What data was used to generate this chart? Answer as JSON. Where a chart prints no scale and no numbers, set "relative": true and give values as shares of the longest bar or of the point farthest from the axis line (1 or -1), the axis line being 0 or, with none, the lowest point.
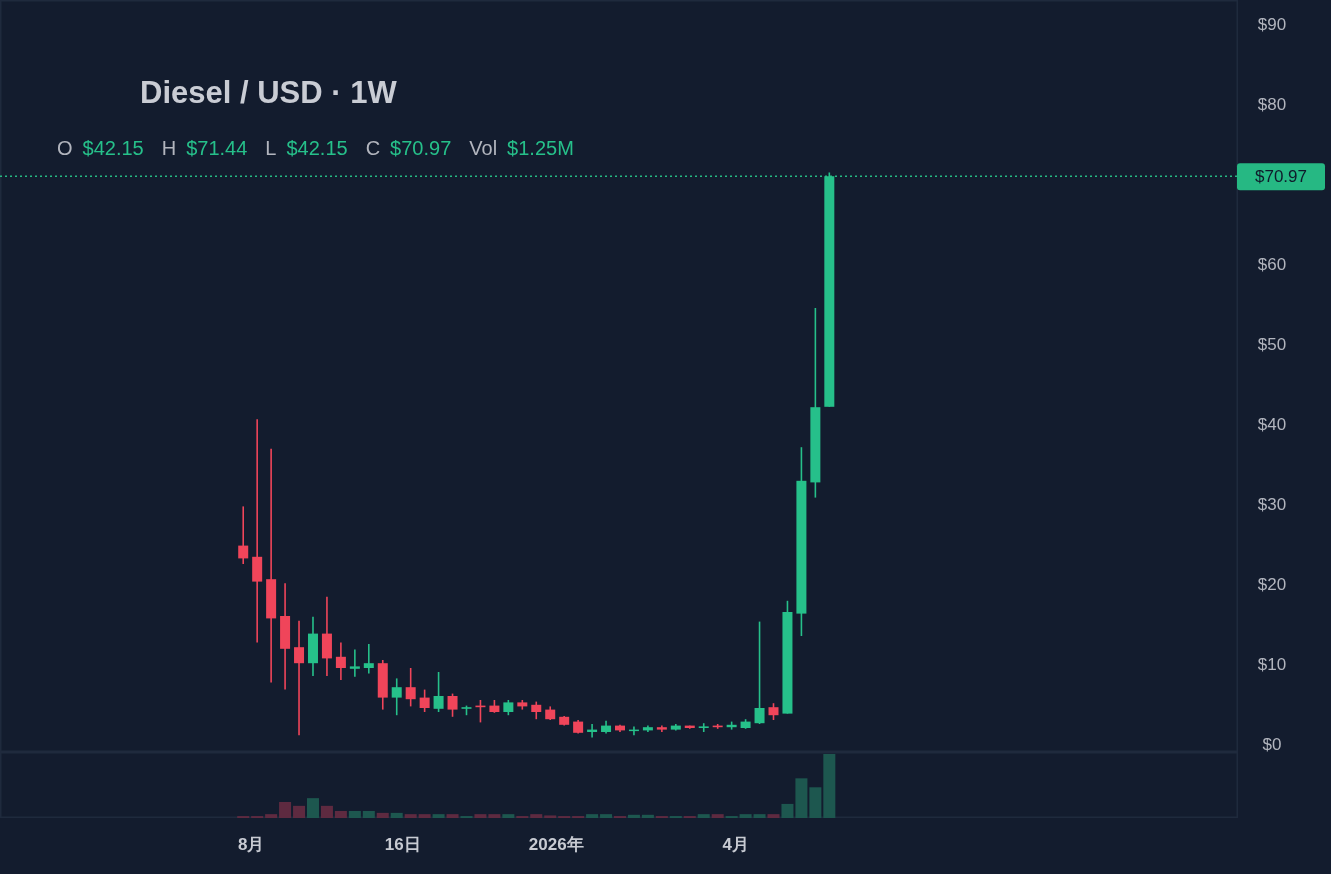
{
  "chart_data": [
    {
      "type": "candlestick",
      "title": "Diesel / USD · 1W",
      "annotations": [
        "O $42.15",
        "H $71.44",
        "L $42.15",
        "C $70.97",
        "Vol $1.25M"
      ],
      "x": [
        "2025-07-28",
        "2025-08-04",
        "2025-08-11",
        "2025-08-18",
        "2025-08-25",
        "2025-09-01",
        "2025-09-08",
        "2025-09-15",
        "2025-09-22",
        "2025-09-29",
        "2025-10-06",
        "2025-10-13",
        "2025-10-20",
        "2025-10-27",
        "2025-11-03",
        "2025-11-10",
        "2025-11-17",
        "2025-11-24",
        "2025-12-01",
        "2025-12-08",
        "2025-12-15",
        "2025-12-22",
        "2025-12-29",
        "2026-01-05",
        "2026-01-12",
        "2026-01-19",
        "2026-01-26",
        "2026-02-02",
        "2026-02-09",
        "2026-02-16",
        "2026-02-23",
        "2026-03-02",
        "2026-03-09",
        "2026-03-16",
        "2026-03-23",
        "2026-03-30",
        "2026-04-06",
        "2026-04-13",
        "2026-04-20",
        "2026-04-27",
        "2026-05-04",
        "2026-05-11",
        "2026-05-18"
      ],
      "ohlc": [
        [
          24.8,
          29.7,
          22.5,
          23.2
        ],
        [
          23.4,
          40.6,
          12.7,
          20.3
        ],
        [
          20.6,
          36.9,
          7.7,
          15.7
        ],
        [
          16.0,
          20.1,
          6.8,
          11.9
        ],
        [
          12.1,
          15.4,
          1.1,
          10.1
        ],
        [
          10.1,
          15.9,
          8.5,
          13.8
        ],
        [
          13.8,
          18.4,
          8.5,
          10.7
        ],
        [
          10.9,
          12.7,
          8.0,
          9.5
        ],
        [
          9.4,
          11.8,
          8.4,
          9.7
        ],
        [
          9.5,
          12.5,
          8.8,
          10.1
        ],
        [
          10.1,
          10.5,
          4.3,
          5.8
        ],
        [
          5.8,
          8.2,
          3.6,
          7.1
        ],
        [
          7.1,
          9.5,
          4.7,
          5.6
        ],
        [
          5.8,
          6.8,
          4.0,
          4.5
        ],
        [
          4.4,
          9.0,
          4.0,
          6.0
        ],
        [
          6.0,
          6.3,
          3.4,
          4.3
        ],
        [
          4.4,
          4.8,
          3.6,
          4.6
        ],
        [
          4.8,
          5.5,
          2.7,
          4.6
        ],
        [
          4.8,
          5.5,
          3.9,
          4.0
        ],
        [
          4.0,
          5.5,
          3.6,
          5.2
        ],
        [
          5.2,
          5.5,
          4.3,
          4.7
        ],
        [
          4.9,
          5.3,
          3.1,
          4.0
        ],
        [
          4.3,
          4.7,
          3.0,
          3.1
        ],
        [
          3.4,
          3.5,
          2.3,
          2.4
        ],
        [
          2.8,
          3.0,
          1.3,
          1.4
        ],
        [
          1.5,
          2.5,
          0.8,
          1.8
        ],
        [
          1.5,
          2.9,
          1.3,
          2.3
        ],
        [
          2.3,
          2.4,
          1.5,
          1.7
        ],
        [
          1.7,
          2.2,
          1.1,
          1.8
        ],
        [
          1.7,
          2.3,
          1.5,
          2.1
        ],
        [
          2.1,
          2.3,
          1.5,
          1.8
        ],
        [
          1.8,
          2.5,
          1.7,
          2.3
        ],
        [
          2.3,
          2.3,
          1.9,
          2.0
        ],
        [
          2.0,
          2.6,
          1.5,
          2.2
        ],
        [
          2.3,
          2.5,
          1.9,
          2.1
        ],
        [
          2.1,
          2.8,
          1.8,
          2.4
        ],
        [
          2.0,
          3.1,
          1.9,
          2.8
        ],
        [
          2.6,
          15.3,
          2.5,
          4.5
        ],
        [
          4.6,
          5.1,
          3.0,
          3.6
        ],
        [
          3.8,
          17.9,
          3.8,
          16.5
        ],
        [
          16.3,
          37.1,
          13.5,
          32.9
        ],
        [
          32.7,
          54.5,
          30.8,
          42.1
        ],
        [
          42.15,
          71.44,
          42.15,
          70.97
        ]
      ],
      "xlim": [
        "2025-03-28",
        "2026-12-09"
      ],
      "ylim": [
        -1,
        93
      ],
      "yticks": [
        {
          "value": 0,
          "label": "$0"
        },
        {
          "value": 10,
          "label": "$10"
        },
        {
          "value": 20,
          "label": "$20"
        },
        {
          "value": 30,
          "label": "$30"
        },
        {
          "value": 40,
          "label": "$40"
        },
        {
          "value": 50,
          "label": "$50"
        },
        {
          "value": 60,
          "label": "$60"
        },
        {
          "value": 80,
          "label": "$80"
        },
        {
          "value": 90,
          "label": "$90"
        }
      ],
      "tick_labels": "y",
      "ref_lines": [
        {
          "axis": "y",
          "value": 70.97,
          "label": "$70.97",
          "color": "#26b883",
          "line_style": "dotted"
        }
      ]
    },
    {
      "type": "bar",
      "relative": true,
      "x": [
        "2025-07-28",
        "2025-08-04",
        "2025-08-11",
        "2025-08-18",
        "2025-08-25",
        "2025-09-01",
        "2025-09-08",
        "2025-09-15",
        "2025-09-22",
        "2025-09-29",
        "2025-10-06",
        "2025-10-13",
        "2025-10-20",
        "2025-10-27",
        "2025-11-03",
        "2025-11-10",
        "2025-11-17",
        "2025-11-24",
        "2025-12-01",
        "2025-12-08",
        "2025-12-15",
        "2025-12-22",
        "2025-12-29",
        "2026-01-05",
        "2026-01-12",
        "2026-01-19",
        "2026-01-26",
        "2026-02-02",
        "2026-02-09",
        "2026-02-16",
        "2026-02-23",
        "2026-03-02",
        "2026-03-09",
        "2026-03-16",
        "2026-03-23",
        "2026-03-30",
        "2026-04-06",
        "2026-04-13",
        "2026-04-20",
        "2026-04-27",
        "2026-05-04",
        "2026-05-11",
        "2026-05-18"
      ],
      "values": [
        0.03,
        0.03,
        0.06,
        0.25,
        0.19,
        0.31,
        0.19,
        0.11,
        0.11,
        0.11,
        0.08,
        0.08,
        0.06,
        0.06,
        0.06,
        0.06,
        0.03,
        0.06,
        0.06,
        0.06,
        0.03,
        0.06,
        0.04,
        0.03,
        0.03,
        0.06,
        0.06,
        0.03,
        0.05,
        0.05,
        0.03,
        0.03,
        0.03,
        0.06,
        0.06,
        0.03,
        0.06,
        0.06,
        0.06,
        0.22,
        0.62,
        0.48,
        1
      ],
      "colors": [
        "#5e2a40",
        "#5e2a40",
        "#5e2a40",
        "#5e2a40",
        "#5e2a40",
        "#1d574f",
        "#5e2a40",
        "#5e2a40",
        "#1d574f",
        "#1d574f",
        "#5e2a40",
        "#1d574f",
        "#5e2a40",
        "#5e2a40",
        "#1d574f",
        "#5e2a40",
        "#1d574f",
        "#5e2a40",
        "#5e2a40",
        "#1d574f",
        "#5e2a40",
        "#5e2a40",
        "#5e2a40",
        "#5e2a40",
        "#5e2a40",
        "#1d574f",
        "#1d574f",
        "#5e2a40",
        "#1d574f",
        "#1d574f",
        "#5e2a40",
        "#1d574f",
        "#5e2a40",
        "#1d574f",
        "#5e2a40",
        "#1d574f",
        "#1d574f",
        "#1d574f",
        "#5e2a40",
        "#1d574f",
        "#1d574f",
        "#1d574f",
        "#1d574f"
      ],
      "xlim": [
        "2025-03-28",
        "2026-12-09"
      ],
      "xticks": [
        {
          "value": "2025-08-01",
          "label": "8月"
        },
        {
          "value": "2025-10-16",
          "label": "16日"
        },
        {
          "value": "2026-01-01",
          "label": "2026年"
        },
        {
          "value": "2026-04-01",
          "label": "4月"
        }
      ],
      "tick_labels": "x"
    }
  ]
}
